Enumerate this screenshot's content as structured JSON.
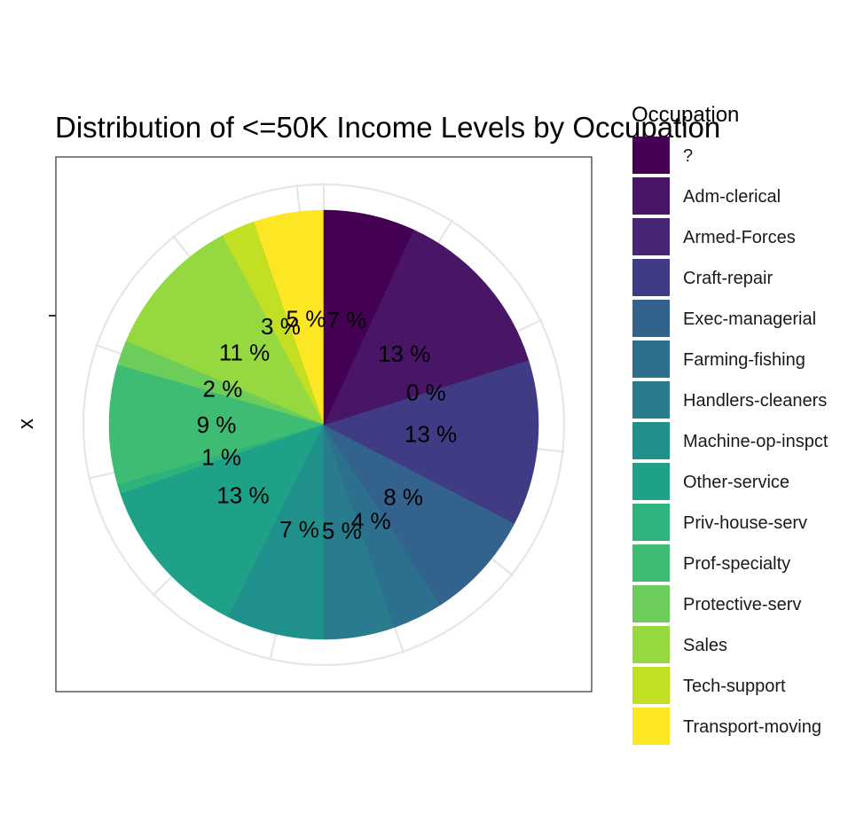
{
  "chart_data": {
    "type": "pie",
    "title": "Distribution of <=50K Income Levels by Occupation",
    "ylabel": "x",
    "legend_title": "Occupation",
    "legend_position": "right",
    "categories": [
      "?",
      "Adm-clerical",
      "Armed-Forces",
      "Craft-repair",
      "Exec-managerial",
      "Farming-fishing",
      "Handlers-cleaners",
      "Machine-op-inspct",
      "Other-service",
      "Priv-house-serv",
      "Prof-specialty",
      "Protective-serv",
      "Sales",
      "Tech-support",
      "Transport-moving"
    ],
    "values": [
      7.0,
      13.5,
      0.03,
      12.7,
      8.4,
      3.9,
      5.4,
      7.5,
      12.7,
      0.7,
      9.2,
      1.9,
      11.0,
      2.6,
      5.4
    ],
    "labels": [
      "7 %",
      "13 %",
      "0 %",
      "13 %",
      "8 %",
      "4 %",
      "5 %",
      "7 %",
      "13 %",
      "1 %",
      "9 %",
      "2 %",
      "11 %",
      "3 %",
      "5 %"
    ],
    "colors": [
      "#440154",
      "#481567",
      "#482677",
      "#3F3B84",
      "#33638D",
      "#2C708E",
      "#287C8E",
      "#20908C",
      "#1FA187",
      "#2EB37C",
      "#3FBC73",
      "#6CCD5A",
      "#95D840",
      "#C2DF23",
      "#FDE725"
    ],
    "legend_colors": [
      "#440154",
      "#481567",
      "#482677",
      "#3F3B84",
      "#33638D",
      "#2C708E",
      "#287C8E",
      "#20908C",
      "#1FA187",
      "#2EB37C",
      "#3FBC73",
      "#6CCD5A",
      "#95D840",
      "#C2DF23",
      "#FDE725"
    ],
    "panel_border_color": "#333333",
    "grid_color": "#e6e6e6"
  }
}
